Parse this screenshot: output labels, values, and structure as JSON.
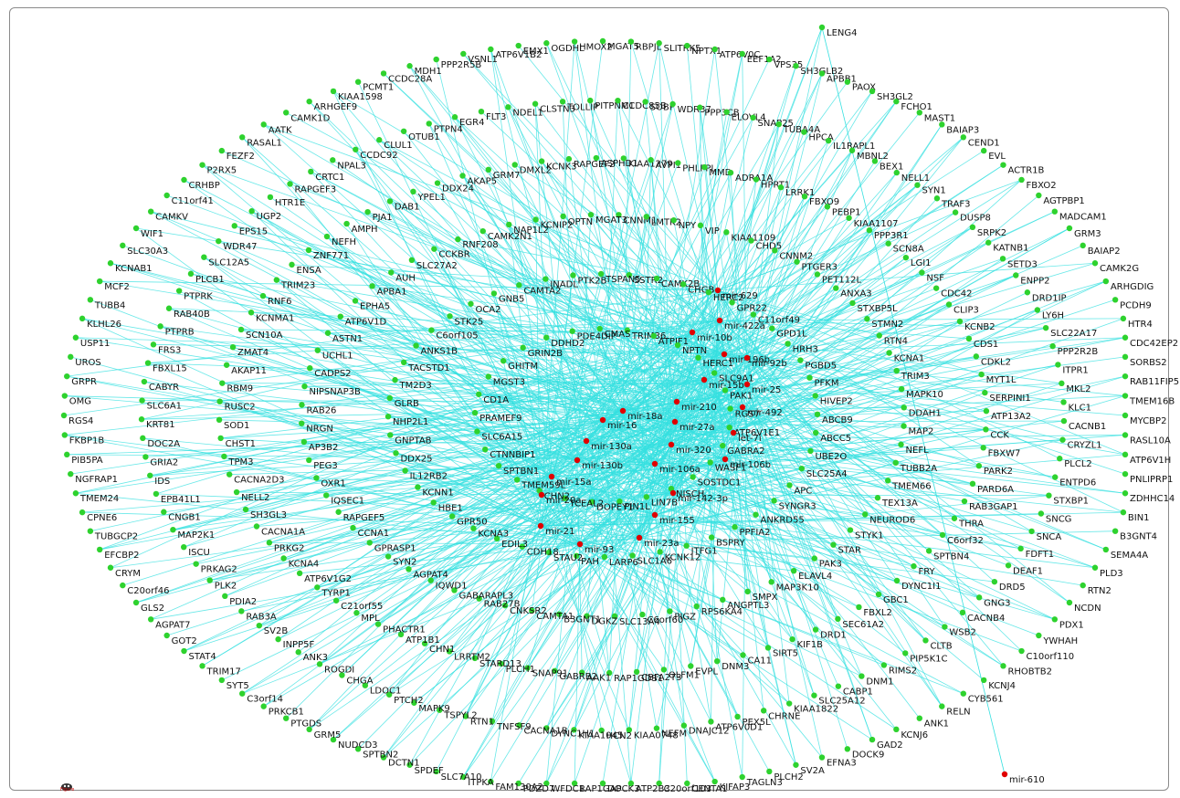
{
  "corner_label": "Figure",
  "colors": {
    "edge": "#35e0e0",
    "gene_node": "#2ed22e",
    "mirna_node": "#e00000",
    "label": "#111111",
    "border": "#8a8a8a"
  },
  "mirnas": [
    "mir-629",
    "mir-422a",
    "mir-10b",
    "mir-196b",
    "mir-92b",
    "mir-15b",
    "mir-25",
    "mir-210",
    "mir-18a",
    "mir-16",
    "mir-492",
    "mir-27a",
    "let-7i",
    "mir-130a",
    "mir-320",
    "mir-130b",
    "mir-106a",
    "mir-106b",
    "mir-15a",
    "mir-20a",
    "mir-142-3p",
    "mir-21",
    "mir-155",
    "mir-93",
    "mir-23a",
    "mir-610"
  ],
  "genes": [
    "EMX1",
    "OGDHL",
    "HMOX2",
    "MGAT5",
    "RBPJL",
    "SLITRK5",
    "NPTX1",
    "ATP6V0C",
    "EEF1A2",
    "VPS35",
    "SH3GLB2",
    "APBB1",
    "PAOX",
    "SH3GL2",
    "FCHO1",
    "MAST1",
    "BAIAP3",
    "CEND1",
    "EVL",
    "ACTR1B",
    "FBXO2",
    "AGTPBP1",
    "MADCAM1",
    "GRM3",
    "BAIAP2",
    "CAMK2G",
    "ARHGDIG",
    "PCDH9",
    "HTR4",
    "CDC42EP2",
    "SORBS2",
    "RAB11FIP5",
    "TMEM16B",
    "MYCBP2",
    "RASL10A",
    "ATP6V1H",
    "PNLIPRP1",
    "ZDHHC14",
    "BIN1",
    "B3GNT4",
    "SEMA4A",
    "PLD3",
    "RTN2",
    "NCDN",
    "PDX1",
    "YWHAH",
    "C10orf110",
    "RHOBTB2",
    "KCNJ4",
    "CYB561",
    "RELN",
    "ANK1",
    "KCNJ6",
    "GAD2",
    "DOCK9",
    "EFNA3",
    "SV2A",
    "PLCH2",
    "TAGLN3",
    "KIFAP3",
    "CENTA1",
    "C20orf103",
    "ATP2B3",
    "DOCK3",
    "RAP1GAP",
    "WFDC1",
    "PDZD7",
    "FAM130A2",
    "ITPKA",
    "SLC7A10",
    "SPDEF",
    "DCTN1",
    "SPTBN2",
    "NUDCD3",
    "GRM5",
    "PTGDS",
    "PRKCB1",
    "C3orf14",
    "SYT5",
    "TRIM17",
    "STAT4",
    "GOT2",
    "AGPAT7",
    "GLS2",
    "C20orf46",
    "CRYM",
    "EFCBP2",
    "TUBGCP2",
    "CPNE6",
    "TMEM24",
    "NGFRAP1",
    "PIB5PA",
    "FKBP1B",
    "RGS4",
    "OMG",
    "GRPR",
    "UROS",
    "USP11",
    "KLHL26",
    "TUBB4",
    "MCF2",
    "KCNAB1",
    "SLC30A3",
    "WIF1",
    "CAMKV",
    "C11orf41",
    "CRHBP",
    "P2RX5",
    "FEZF2",
    "RASAL1",
    "AATK",
    "CAMK1D",
    "ARHGEF9",
    "KIAA1598",
    "PCMT1",
    "CCDC28A",
    "MDH1",
    "PPP2R5B",
    "VSNL1",
    "ATP6V1B2",
    "TOLLIP",
    "PITPNM1",
    "CCDC85B",
    "SOBP",
    "WDR37",
    "PPP3CB",
    "ELOVL4",
    "SNAP25",
    "TUBA4A",
    "HPCA",
    "IL1RAPL1",
    "MBNL2",
    "BEX1",
    "NELL1",
    "SYN1",
    "TRAF3",
    "DUSP8",
    "SRPK2",
    "KATNB1",
    "SETD3",
    "ENPP2",
    "DRD1IP",
    "LY6H",
    "SLC22A17",
    "PPP2R2B",
    "ITPR1",
    "MKL2",
    "KLC1",
    "CACNB1",
    "CRYZL1",
    "PLCL2",
    "ENTPD6",
    "STXBP1",
    "SNCG",
    "SNCA",
    "FDFT1",
    "DEAF1",
    "DRD5",
    "GNG3",
    "CACNB4",
    "WSB2",
    "CLTB",
    "PIP5K1C",
    "RIMS2",
    "DNM1",
    "CABP1",
    "SLC25A12",
    "KIAA1822",
    "CHRNE",
    "PEX5L",
    "ATP6V0D1",
    "DNAJC12",
    "NEFM",
    "KIAA0748",
    "HCN2",
    "KIAA1045",
    "DYNC1H1",
    "CACNA1B",
    "TNFSF9",
    "RTN1",
    "TSPYL2",
    "MAPK9",
    "PTCH2",
    "LDOC1",
    "CHGA",
    "ROGDI",
    "ANK3",
    "INPP5F",
    "SV2B",
    "RAB3A",
    "PDIA2",
    "PLK2",
    "PRKAG2",
    "ISCU",
    "MAP2K1",
    "CNGB1",
    "EPB41L1",
    "IDS",
    "GRIA2",
    "DOC2A",
    "KRT81",
    "SLC6A1",
    "CABYR",
    "FBXL15",
    "FRS3",
    "PTPRB",
    "RAB40B",
    "PTPRK",
    "PLCB1",
    "SLC12A5",
    "WDR47",
    "EPS15",
    "UGP2",
    "HTR1E",
    "RAPGEF3",
    "CRTC1",
    "NPAL3",
    "CCDC92",
    "CLUL1",
    "OTUB1",
    "PTPN4",
    "EGR4",
    "FLT3",
    "NDEL1",
    "CLSTN3",
    "ASPHD1",
    "KIAA1279",
    "AVPI1",
    "PHLPPL",
    "MMD",
    "ADRA1A",
    "HPRT1",
    "LRRK1",
    "FBXO9",
    "PEBP1",
    "KIAA1107",
    "PPP3R1",
    "SCN8A",
    "LGI1",
    "NSF",
    "CDC42",
    "CLIP3",
    "KCNB2",
    "CDS1",
    "CDKL2",
    "MYT1L",
    "SERPINI1",
    "ATP13A2",
    "CCK",
    "FBXW7",
    "PARK2",
    "PARD6A",
    "RAB3GAP1",
    "THRA",
    "C6orf32",
    "SPTBN4",
    "FRY",
    "DYNC1I1",
    "GBC1",
    "FBXL2",
    "SEC61A2",
    "DRD1",
    "KIF1B",
    "SIRT5",
    "CA11",
    "DNM3",
    "EVPL",
    "OLFM1",
    "CBFA2T3",
    "RAP1GDS1",
    "AAK1",
    "GABRB2",
    "SNAP91",
    "PLCH1",
    "STARD13",
    "LRRTM2",
    "CHN1",
    "ATP1B1",
    "PHACTR1",
    "MPL",
    "C21orf55",
    "TYRP1",
    "ATP6V1G2",
    "KCNA4",
    "PRKG2",
    "CACNA1A",
    "SH3GL3",
    "NELL2",
    "CACNA2D3",
    "TPM3",
    "CHST1",
    "SOD1",
    "RUSC2",
    "RBM9",
    "AKAP11",
    "ZMAT4",
    "SCN10A",
    "KCNMA1",
    "RNF6",
    "TRIM23",
    "ENSA",
    "ZNF771",
    "NEFH",
    "AMPH",
    "PJA1",
    "DAB1",
    "YPEL1",
    "DDX24",
    "AKAP5",
    "GRM7",
    "DMXL2",
    "KCNK3",
    "RAPGEF2",
    "CNNM1",
    "LMTK2",
    "NPY",
    "VIP",
    "KIAA1109",
    "CHD5",
    "CNNM2",
    "PTGER3",
    "PET112L",
    "ANXA3",
    "STXBP5L",
    "STMN2",
    "RTN4",
    "KCNA1",
    "TRIM3",
    "MAPK10",
    "DDAH1",
    "MAP2",
    "NEFL",
    "TUBB2A",
    "TMEM66",
    "TEX13A",
    "NEUROD6",
    "STYK1",
    "STAR",
    "PAK3",
    "ELAVL4",
    "MAP3K10",
    "SMPX",
    "ANGPTL3",
    "RPS6KA4",
    "PIGZ",
    "C6orf60",
    "SLC13A4",
    "DGKZ",
    "B3GNT1",
    "CAMTA1",
    "CNKSR2",
    "RAB27B",
    "GABARAPL3",
    "IQWD1",
    "AGPAT4",
    "SYN2",
    "GPRASP1",
    "CCNA1",
    "RAPGEF5",
    "IQSEC1",
    "OXR1",
    "PEG3",
    "AP3B2",
    "NRGN",
    "RAB26",
    "NIPSNAP3B",
    "CADPS2",
    "UCHL1",
    "ASTN1",
    "ATP6V1D",
    "EPHA5",
    "APBA1",
    "AUH",
    "SLC27A2",
    "CCKBR",
    "RNF208",
    "CAMK2N1",
    "NAP1L2",
    "KCNIP2",
    "OPTN",
    "MGAT3",
    "SSTR2",
    "CAMK2B",
    "CHGB",
    "HERC2",
    "GPR22",
    "C11orf49",
    "GPD1L",
    "HRH3",
    "PGBD5",
    "PFKM",
    "HIVEP2",
    "ABCB9",
    "ABCC5",
    "UBE2O",
    "SLC25A4",
    "APC",
    "SYNGR3",
    "ANKRD55",
    "PPFIA2",
    "BSPRY",
    "ITFG1",
    "KCNK12",
    "SLC1A6",
    "LARP6",
    "PAH",
    "STAU2",
    "CDH18",
    "EDIL3",
    "KCNA3",
    "GPR50",
    "HBE1",
    "KCNN1",
    "IL12RB2",
    "DDX25",
    "GNPTAB",
    "NHP2L1",
    "GLRB",
    "TM2D3",
    "TACSTD1",
    "ANKS1B",
    "C6orf105",
    "STK25",
    "OCA2",
    "GNB5",
    "CAMTA2",
    "INADL",
    "PTK2B",
    "TSPAN5",
    "TRIM36",
    "ATPIF1",
    "NPTN",
    "HERC1",
    "SLC9A1",
    "PAK1",
    "RGS7",
    "ATP6V1E1",
    "GABRA2",
    "WASF1",
    "SOSTDC1",
    "NISCH",
    "LIN7B",
    "PIN1L",
    "DOPEY1",
    "TCEAL2",
    "CHN2",
    "TMEM59L",
    "SPTBN1",
    "CTNNBIP1",
    "SLC6A15",
    "PRAMEF9",
    "CD1A",
    "MGST3",
    "GHITM",
    "GRIN2B",
    "DDHD2",
    "PDE4DIP",
    "CMAS",
    "LENG4"
  ]
}
